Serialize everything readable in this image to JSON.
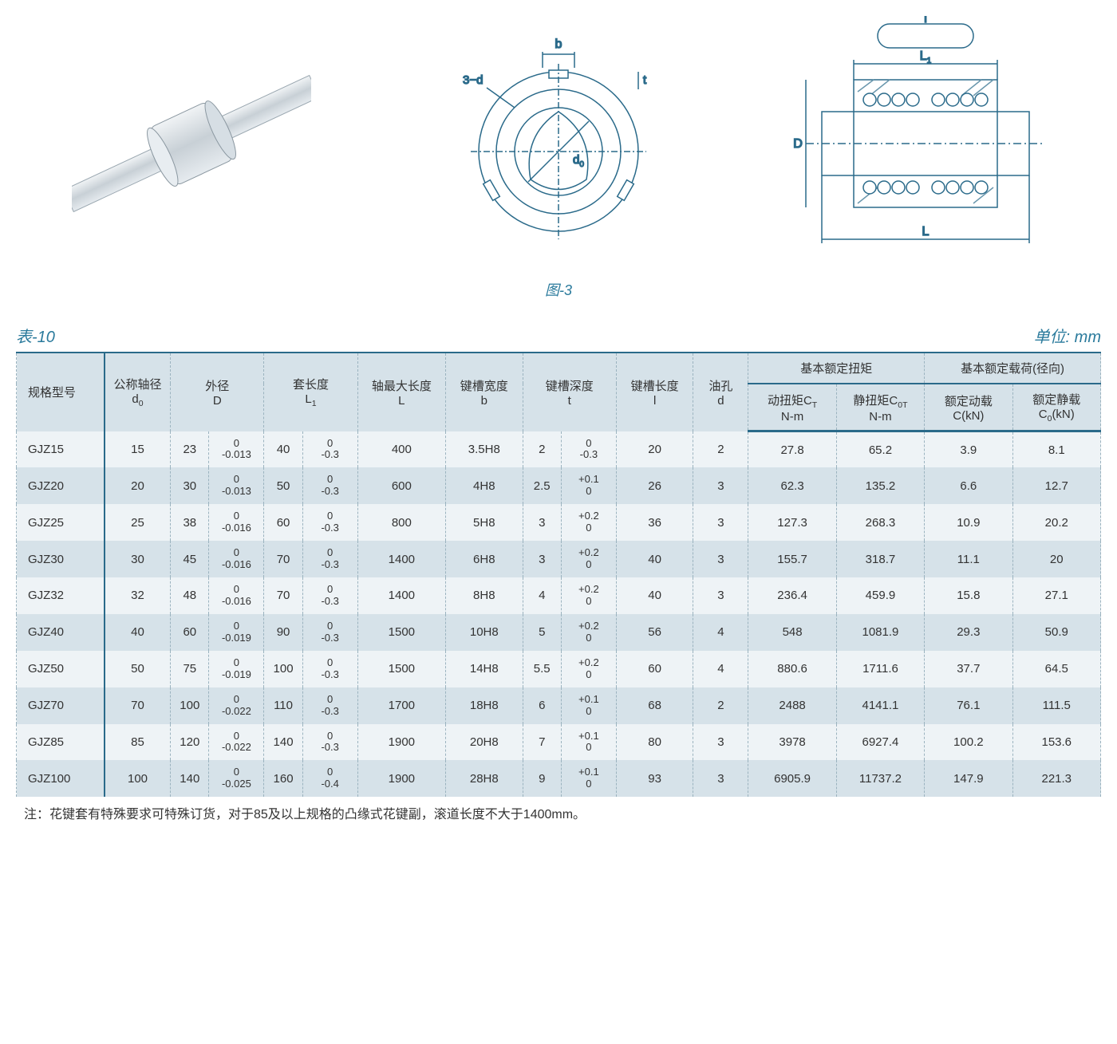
{
  "figure": {
    "caption": "图-3",
    "labels": {
      "b": "b",
      "t": "t",
      "d0": "d",
      "three_d": "3−d",
      "D": "D",
      "L": "L",
      "L1": "L",
      "l": "l"
    },
    "colors": {
      "stroke": "#2a6a8a",
      "fill_light": "#e8eef2",
      "fill_hatch": "#bcd0da",
      "bg": "#ffffff"
    }
  },
  "table": {
    "label": "表-10",
    "unit": "单位: mm",
    "headers": {
      "model": "规格型号",
      "d0": {
        "t": "公称轴径",
        "s": "d",
        "sub": "0"
      },
      "D": {
        "t": "外径",
        "s": "D"
      },
      "L1": {
        "t": "套长度",
        "s": "L",
        "sub": "1"
      },
      "L": {
        "t": "轴最大长度",
        "s": "L"
      },
      "b": {
        "t": "键槽宽度",
        "s": "b"
      },
      "tt": {
        "t": "键槽深度",
        "s": "t"
      },
      "l": {
        "t": "键槽长度",
        "s": "l"
      },
      "d": {
        "t": "油孔",
        "s": "d"
      },
      "torque_group": "基本额定扭矩",
      "load_group": "基本额定载荷(径向)",
      "ct": {
        "l1": "动扭矩C",
        "sub": "T",
        "l2": "N-m"
      },
      "cot": {
        "l1": "静扭矩C",
        "sub": "0T",
        "l2": "N-m"
      },
      "c": {
        "l1": "额定动载",
        "l2": "C(kN)"
      },
      "c0": {
        "l1": "额定静载",
        "l2": "C",
        "sub": "0",
        "l3": "(kN)"
      }
    },
    "rows": [
      {
        "m": "GJZ15",
        "d0": "15",
        "Dv": "23",
        "Dtu": "0",
        "Dtl": "-0.013",
        "L1v": "40",
        "L1tu": "0",
        "L1tl": "-0.3",
        "L": "400",
        "b": "3.5H8",
        "tv": "2",
        "ttu": "0",
        "ttl": "-0.3",
        "l": "20",
        "d": "2",
        "ct": "27.8",
        "cot": "65.2",
        "c": "3.9",
        "c0": "8.1"
      },
      {
        "m": "GJZ20",
        "d0": "20",
        "Dv": "30",
        "Dtu": "0",
        "Dtl": "-0.013",
        "L1v": "50",
        "L1tu": "0",
        "L1tl": "-0.3",
        "L": "600",
        "b": "4H8",
        "tv": "2.5",
        "ttu": "+0.1",
        "ttl": "0",
        "l": "26",
        "d": "3",
        "ct": "62.3",
        "cot": "135.2",
        "c": "6.6",
        "c0": "12.7"
      },
      {
        "m": "GJZ25",
        "d0": "25",
        "Dv": "38",
        "Dtu": "0",
        "Dtl": "-0.016",
        "L1v": "60",
        "L1tu": "0",
        "L1tl": "-0.3",
        "L": "800",
        "b": "5H8",
        "tv": "3",
        "ttu": "+0.2",
        "ttl": "0",
        "l": "36",
        "d": "3",
        "ct": "127.3",
        "cot": "268.3",
        "c": "10.9",
        "c0": "20.2"
      },
      {
        "m": "GJZ30",
        "d0": "30",
        "Dv": "45",
        "Dtu": "0",
        "Dtl": "-0.016",
        "L1v": "70",
        "L1tu": "0",
        "L1tl": "-0.3",
        "L": "1400",
        "b": "6H8",
        "tv": "3",
        "ttu": "+0.2",
        "ttl": "0",
        "l": "40",
        "d": "3",
        "ct": "155.7",
        "cot": "318.7",
        "c": "11.1",
        "c0": "20"
      },
      {
        "m": "GJZ32",
        "d0": "32",
        "Dv": "48",
        "Dtu": "0",
        "Dtl": "-0.016",
        "L1v": "70",
        "L1tu": "0",
        "L1tl": "-0.3",
        "L": "1400",
        "b": "8H8",
        "tv": "4",
        "ttu": "+0.2",
        "ttl": "0",
        "l": "40",
        "d": "3",
        "ct": "236.4",
        "cot": "459.9",
        "c": "15.8",
        "c0": "27.1"
      },
      {
        "m": "GJZ40",
        "d0": "40",
        "Dv": "60",
        "Dtu": "0",
        "Dtl": "-0.019",
        "L1v": "90",
        "L1tu": "0",
        "L1tl": "-0.3",
        "L": "1500",
        "b": "10H8",
        "tv": "5",
        "ttu": "+0.2",
        "ttl": "0",
        "l": "56",
        "d": "4",
        "ct": "548",
        "cot": "1081.9",
        "c": "29.3",
        "c0": "50.9"
      },
      {
        "m": "GJZ50",
        "d0": "50",
        "Dv": "75",
        "Dtu": "0",
        "Dtl": "-0.019",
        "L1v": "100",
        "L1tu": "0",
        "L1tl": "-0.3",
        "L": "1500",
        "b": "14H8",
        "tv": "5.5",
        "ttu": "+0.2",
        "ttl": "0",
        "l": "60",
        "d": "4",
        "ct": "880.6",
        "cot": "1711.6",
        "c": "37.7",
        "c0": "64.5"
      },
      {
        "m": "GJZ70",
        "d0": "70",
        "Dv": "100",
        "Dtu": "0",
        "Dtl": "-0.022",
        "L1v": "110",
        "L1tu": "0",
        "L1tl": "-0.3",
        "L": "1700",
        "b": "18H8",
        "tv": "6",
        "ttu": "+0.1",
        "ttl": "0",
        "l": "68",
        "d": "2",
        "ct": "2488",
        "cot": "4141.1",
        "c": "76.1",
        "c0": "111.5"
      },
      {
        "m": "GJZ85",
        "d0": "85",
        "Dv": "120",
        "Dtu": "0",
        "Dtl": "-0.022",
        "L1v": "140",
        "L1tu": "0",
        "L1tl": "-0.3",
        "L": "1900",
        "b": "20H8",
        "tv": "7",
        "ttu": "+0.1",
        "ttl": "0",
        "l": "80",
        "d": "3",
        "ct": "3978",
        "cot": "6927.4",
        "c": "100.2",
        "c0": "153.6"
      },
      {
        "m": "GJZ100",
        "d0": "100",
        "Dv": "140",
        "Dtu": "0",
        "Dtl": "-0.025",
        "L1v": "160",
        "L1tu": "0",
        "L1tl": "-0.4",
        "L": "1900",
        "b": "28H8",
        "tv": "9",
        "ttu": "+0.1",
        "ttl": "0",
        "l": "93",
        "d": "3",
        "ct": "6905.9",
        "cot": "11737.2",
        "c": "147.9",
        "c0": "221.3"
      }
    ],
    "footnote": "注：花键套有特殊要求可特殊订货，对于85及以上规格的凸缘式花键副，滚道长度不大于1400mm。"
  }
}
